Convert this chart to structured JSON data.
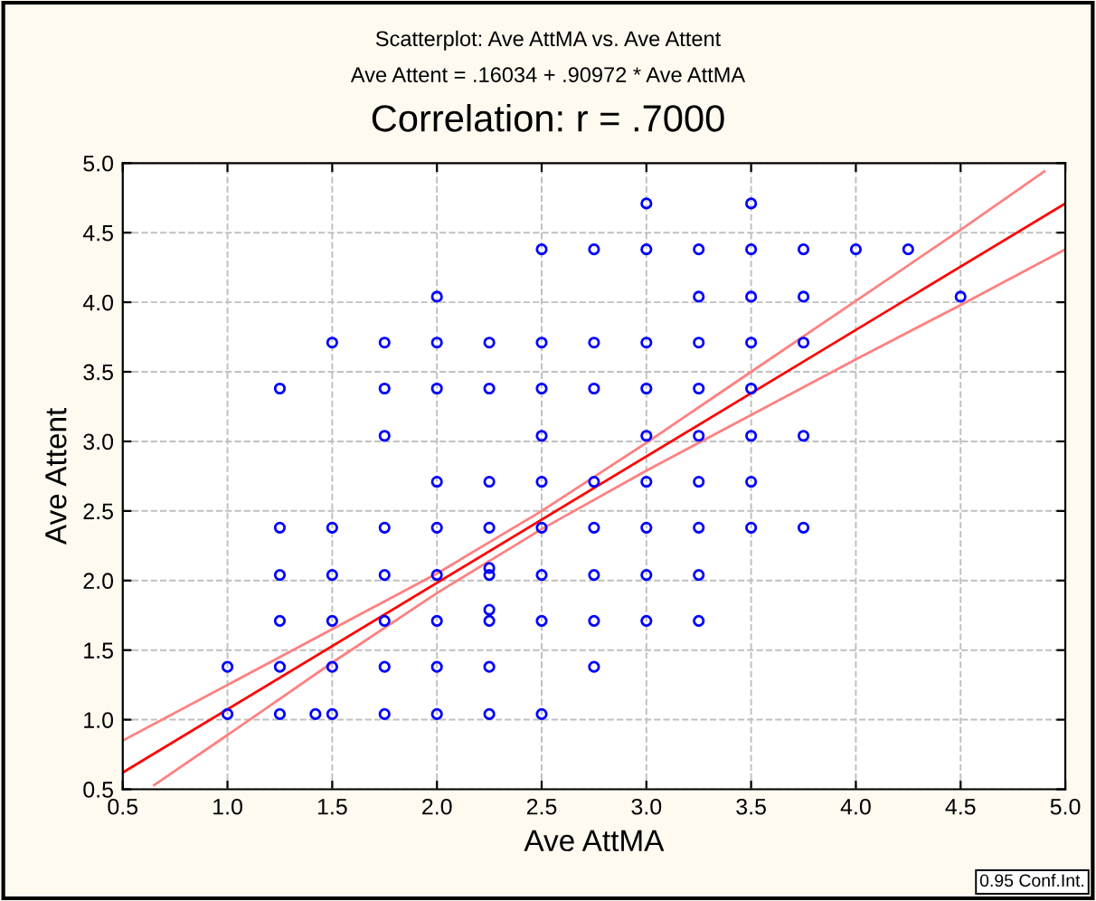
{
  "chart_data": {
    "type": "scatter",
    "title": "Scatterplot: Ave AttMA vs. Ave Attent",
    "subtitle": "Ave Attent = .16034 + .90972 * Ave AttMA",
    "xlabel": "Ave AttMA",
    "ylabel": "Ave Attent",
    "annotations": [
      "Correlation: r = .7000",
      "0.95 Conf.Int."
    ],
    "xlim": [
      0.5,
      5.0
    ],
    "ylim": [
      0.5,
      5.0
    ],
    "xticks": [
      {
        "value": 0.5,
        "label": "0.5"
      },
      {
        "value": 1.0,
        "label": "1.0"
      },
      {
        "value": 1.5,
        "label": "1.5"
      },
      {
        "value": 2.0,
        "label": "2.0"
      },
      {
        "value": 2.5,
        "label": "2.5"
      },
      {
        "value": 3.0,
        "label": "3.0"
      },
      {
        "value": 3.5,
        "label": "3.5"
      },
      {
        "value": 4.0,
        "label": "4.0"
      },
      {
        "value": 4.5,
        "label": "4.5"
      },
      {
        "value": 5.0,
        "label": "5.0"
      }
    ],
    "yticks": [
      {
        "value": 0.5,
        "label": "0.5"
      },
      {
        "value": 1.0,
        "label": "1.0"
      },
      {
        "value": 1.5,
        "label": "1.5"
      },
      {
        "value": 2.0,
        "label": "2.0"
      },
      {
        "value": 2.5,
        "label": "2.5"
      },
      {
        "value": 3.0,
        "label": "3.0"
      },
      {
        "value": 3.5,
        "label": "3.5"
      },
      {
        "value": 4.0,
        "label": "4.0"
      },
      {
        "value": 4.5,
        "label": "4.5"
      },
      {
        "value": 5.0,
        "label": "5.0"
      }
    ],
    "grid": true,
    "marker": "circle",
    "legend": false,
    "series": [
      {
        "color": "#0000ff",
        "x": [
          1.0,
          1.0,
          1.25,
          1.25,
          1.25,
          1.25,
          1.25,
          1.25,
          1.42,
          1.5,
          1.5,
          1.5,
          1.5,
          1.5,
          1.5,
          1.75,
          1.75,
          1.75,
          1.75,
          1.75,
          1.75,
          1.75,
          1.75,
          2.0,
          2.0,
          2.0,
          2.0,
          2.0,
          2.0,
          2.0,
          2.0,
          2.0,
          2.25,
          2.25,
          2.25,
          2.25,
          2.25,
          2.25,
          2.25,
          2.25,
          2.25,
          2.25,
          2.5,
          2.5,
          2.5,
          2.5,
          2.5,
          2.5,
          2.5,
          2.5,
          2.5,
          2.75,
          2.75,
          2.75,
          2.75,
          2.75,
          2.75,
          2.75,
          2.75,
          3.0,
          3.0,
          3.0,
          3.0,
          3.0,
          3.0,
          3.0,
          3.0,
          3.0,
          3.25,
          3.25,
          3.25,
          3.25,
          3.25,
          3.25,
          3.25,
          3.25,
          3.25,
          3.5,
          3.5,
          3.5,
          3.5,
          3.5,
          3.5,
          3.5,
          3.5,
          3.75,
          3.75,
          3.75,
          3.75,
          3.75,
          4.0,
          4.25,
          4.5
        ],
        "values": [
          1.38,
          1.04,
          3.38,
          2.38,
          2.04,
          1.71,
          1.38,
          1.04,
          1.04,
          3.71,
          2.38,
          2.04,
          1.71,
          1.38,
          1.04,
          3.71,
          3.38,
          3.04,
          2.38,
          2.04,
          1.71,
          1.38,
          1.04,
          4.04,
          3.71,
          3.38,
          2.71,
          2.38,
          2.04,
          1.71,
          1.38,
          1.04,
          3.71,
          3.38,
          2.71,
          2.38,
          2.09,
          2.04,
          1.79,
          1.71,
          1.38,
          1.04,
          4.38,
          3.71,
          3.38,
          3.04,
          2.71,
          2.38,
          2.04,
          1.71,
          1.04,
          4.38,
          3.71,
          3.38,
          2.71,
          2.38,
          2.04,
          1.71,
          1.38,
          4.71,
          4.38,
          3.71,
          3.38,
          3.04,
          2.71,
          2.38,
          2.04,
          1.71,
          4.38,
          4.04,
          3.71,
          3.38,
          3.04,
          2.71,
          2.38,
          2.04,
          1.71,
          4.71,
          4.38,
          4.04,
          3.71,
          3.38,
          3.04,
          2.71,
          2.38,
          4.38,
          4.04,
          3.71,
          3.04,
          2.38,
          4.38,
          4.38,
          4.04
        ]
      },
      {
        "type": "line",
        "color": "#ff0000",
        "marker": "none",
        "x": [
          0.5,
          5.0
        ],
        "values": [
          0.62,
          4.71
        ]
      },
      {
        "type": "line",
        "color": "#ff8080",
        "marker": "none",
        "x": [
          0.5,
          1.0,
          1.5,
          2.0,
          2.5,
          3.0,
          3.5,
          4.0,
          4.5,
          4.9
        ],
        "values": [
          0.85,
          1.25,
          1.65,
          2.05,
          2.5,
          2.99,
          3.5,
          4.01,
          4.52,
          4.94
        ]
      },
      {
        "type": "line",
        "color": "#ff8080",
        "marker": "none",
        "x": [
          0.65,
          1.0,
          1.5,
          2.0,
          2.5,
          3.0,
          3.5,
          4.0,
          4.5,
          5.0
        ],
        "values": [
          0.53,
          0.89,
          1.41,
          1.91,
          2.37,
          2.79,
          3.19,
          3.59,
          3.98,
          4.38
        ]
      }
    ]
  }
}
